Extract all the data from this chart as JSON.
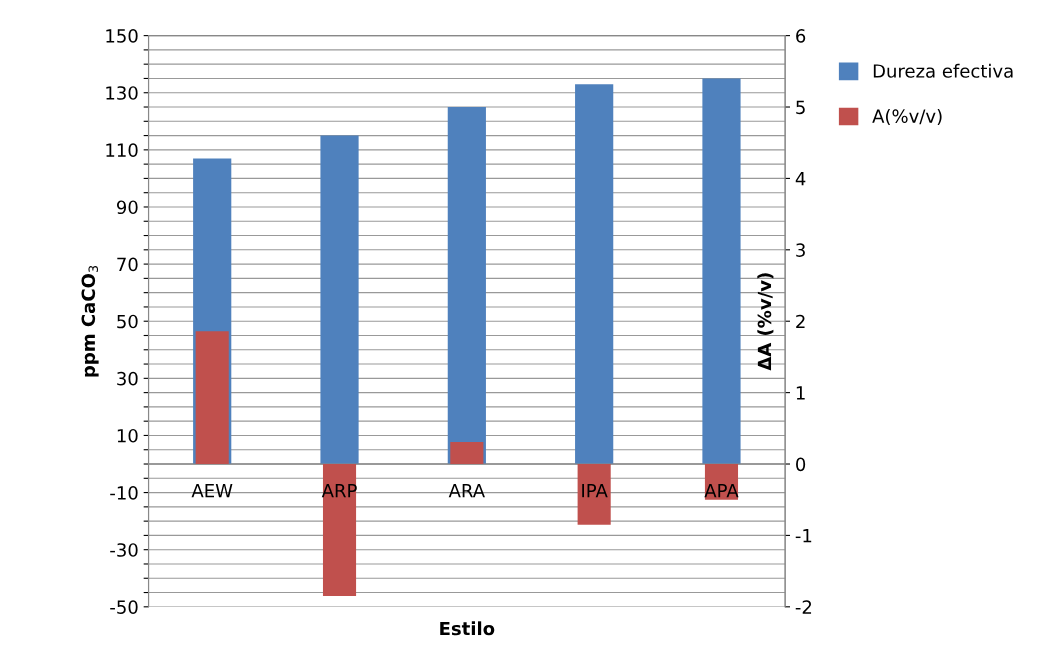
{
  "chart_data": {
    "type": "bar",
    "xlabel": "Estilo",
    "ylabel": "ppm CaCO$_{3}$",
    "y2label": "ΔA (%v/v)",
    "categories": [
      "AEW",
      "ARP",
      "ARA",
      "IPA",
      "APA"
    ],
    "series": [
      {
        "name": "Dureza efectiva",
        "color": "#4f81bd",
        "values": [
          107,
          115,
          125,
          133,
          135
        ]
      },
      {
        "name": "A(%v/v)",
        "color": "#c0504d",
        "values": [
          1.86,
          -1.85,
          0.31,
          -0.85,
          -0.5
        ],
        "axis": "y2"
      }
    ],
    "ylim": [
      -50,
      150
    ],
    "yticks": [
      {
        "value": -50,
        "label": "-50"
      },
      {
        "value": -45,
        "label": null
      },
      {
        "value": -40,
        "label": null
      },
      {
        "value": -35,
        "label": null
      },
      {
        "value": -30,
        "label": "-30"
      },
      {
        "value": -25,
        "label": null
      },
      {
        "value": -20,
        "label": null
      },
      {
        "value": -15,
        "label": null
      },
      {
        "value": -10,
        "label": "-10"
      },
      {
        "value": -5,
        "label": null
      },
      {
        "value": 0,
        "label": null
      },
      {
        "value": 5,
        "label": null
      },
      {
        "value": 10,
        "label": "10"
      },
      {
        "value": 15,
        "label": null
      },
      {
        "value": 20,
        "label": null
      },
      {
        "value": 25,
        "label": null
      },
      {
        "value": 30,
        "label": "30"
      },
      {
        "value": 35,
        "label": null
      },
      {
        "value": 40,
        "label": null
      },
      {
        "value": 45,
        "label": null
      },
      {
        "value": 50,
        "label": "50"
      },
      {
        "value": 55,
        "label": null
      },
      {
        "value": 60,
        "label": null
      },
      {
        "value": 65,
        "label": null
      },
      {
        "value": 70,
        "label": "70"
      },
      {
        "value": 75,
        "label": null
      },
      {
        "value": 80,
        "label": null
      },
      {
        "value": 85,
        "label": null
      },
      {
        "value": 90,
        "label": "90"
      },
      {
        "value": 95,
        "label": null
      },
      {
        "value": 100,
        "label": null
      },
      {
        "value": 105,
        "label": null
      },
      {
        "value": 110,
        "label": "110"
      },
      {
        "value": 115,
        "label": null
      },
      {
        "value": 120,
        "label": null
      },
      {
        "value": 125,
        "label": null
      },
      {
        "value": 130,
        "label": "130"
      },
      {
        "value": 135,
        "label": null
      },
      {
        "value": 140,
        "label": null
      },
      {
        "value": 145,
        "label": null
      },
      {
        "value": 150,
        "label": "150"
      }
    ],
    "y2lim": [
      -2,
      6
    ],
    "y2ticks": [
      -2,
      -1,
      0,
      1,
      2,
      3,
      4,
      5,
      6
    ],
    "grid": "y",
    "legend": "right"
  }
}
